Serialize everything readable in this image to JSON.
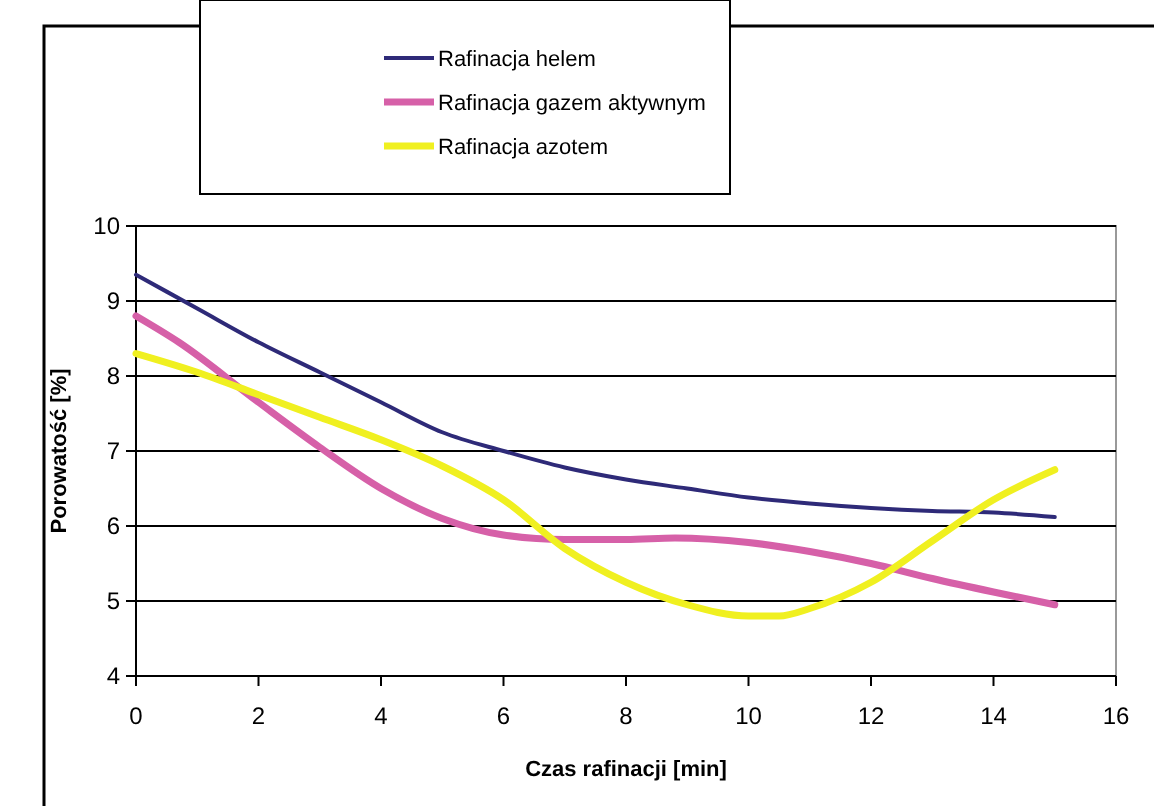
{
  "chart_data": {
    "type": "line",
    "xlabel": "Czas rafinacji [min]",
    "ylabel": "Porowatość [%]",
    "xlim": [
      0,
      16
    ],
    "xticks": [
      0,
      2,
      4,
      6,
      8,
      10,
      12,
      14,
      16
    ],
    "ylim": [
      4,
      10
    ],
    "yticks": [
      4,
      5,
      6,
      7,
      8,
      9,
      10
    ],
    "grid": "y",
    "legend": "top",
    "line_style": "solid",
    "marker": "none",
    "series": [
      {
        "name": "Rafinacja helem",
        "color": "#2e2a78",
        "x": [
          0,
          1,
          2,
          3,
          4,
          5,
          6,
          7,
          8,
          9,
          10,
          11,
          12,
          13,
          14,
          15
        ],
        "values": [
          9.35,
          8.9,
          8.45,
          8.05,
          7.65,
          7.25,
          7.0,
          6.78,
          6.62,
          6.5,
          6.38,
          6.3,
          6.24,
          6.2,
          6.18,
          6.12
        ]
      },
      {
        "name": "Rafinacja gazem aktywnym",
        "color": "#d660a8",
        "x": [
          0,
          0.7,
          2,
          3,
          4,
          5,
          6,
          7,
          8,
          8.8,
          10,
          11,
          12,
          13,
          14,
          15
        ],
        "values": [
          8.8,
          8.45,
          7.65,
          7.05,
          6.5,
          6.1,
          5.88,
          5.82,
          5.82,
          5.84,
          5.78,
          5.66,
          5.5,
          5.3,
          5.12,
          4.95
        ]
      },
      {
        "name": "Rafinacja azotem",
        "color": "#f0f020",
        "x": [
          0,
          1,
          2,
          3,
          4,
          5,
          6,
          7,
          8,
          9,
          10,
          10.5,
          11,
          12,
          13,
          14,
          15
        ],
        "values": [
          8.3,
          8.05,
          7.75,
          7.45,
          7.15,
          6.8,
          6.35,
          5.7,
          5.25,
          4.95,
          4.8,
          4.8,
          4.9,
          5.25,
          5.8,
          6.35,
          6.75
        ]
      }
    ]
  }
}
